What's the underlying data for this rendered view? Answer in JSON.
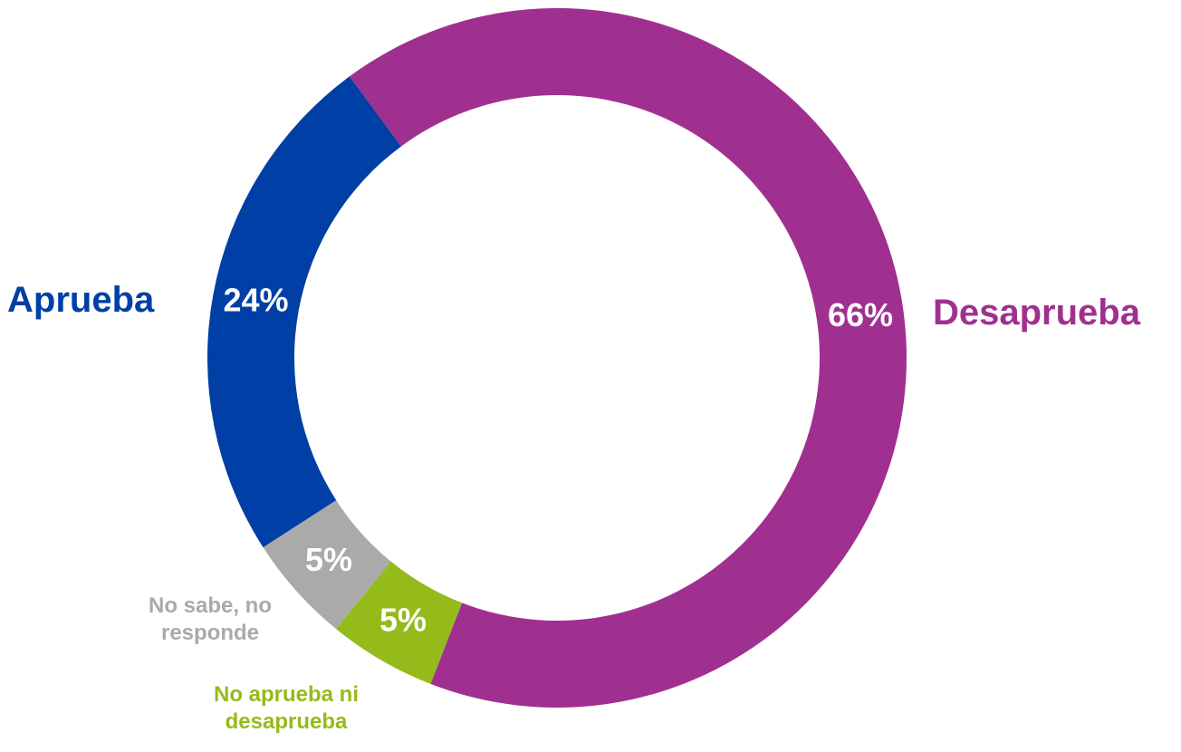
{
  "chart_data": {
    "type": "donut",
    "categories": [
      "Desaprueba",
      "No aprueba ni desaprueba",
      "No sabe, no responde",
      "Aprueba"
    ],
    "values": [
      66,
      5,
      5,
      24
    ],
    "value_labels": [
      "66%",
      "5%",
      "5%",
      "24%"
    ],
    "colors": [
      "#a03090",
      "#94bb1a",
      "#aaaaaa",
      "#003fa5"
    ]
  }
}
